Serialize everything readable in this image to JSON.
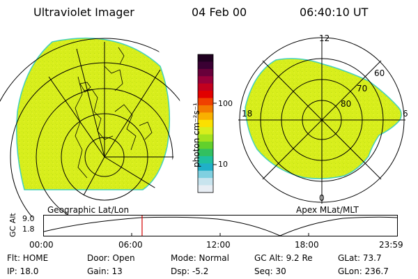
{
  "header": {
    "instrument": "Ultraviolet Imager",
    "date": "04 Feb 00",
    "time": "06:40:10 UT"
  },
  "colors": {
    "emission": "#d8ee1c",
    "emission_edge": "#42d0bd",
    "grid": "#000000",
    "time_marker": "#d40000"
  },
  "colorbar": {
    "unit_label": "photon cm⁻²s⁻¹",
    "ticks": [
      "100",
      "10"
    ],
    "colors": [
      "#200020",
      "#3a0033",
      "#68003a",
      "#98003a",
      "#c2001e",
      "#e10000",
      "#f04000",
      "#f37a00",
      "#f9b000",
      "#fbe000",
      "#d8ee1c",
      "#a4e21e",
      "#62d02c",
      "#32c060",
      "#1fc0a0",
      "#20b0c8",
      "#80d0e0",
      "#c8e4ee",
      "#e8eef4"
    ]
  },
  "left_panel": {
    "caption": "Geographic Lat/Lon"
  },
  "right_panel": {
    "caption": "Apex MLat/MLT",
    "mlt_labels": {
      "top": "12",
      "left": "18",
      "right": "6",
      "bottom": "0"
    },
    "lat_labels": [
      "60",
      "70",
      "80"
    ]
  },
  "altitude_plot": {
    "axis_title": "GC Alt",
    "y_ticks": [
      "9.0",
      "1.8"
    ],
    "x_ticks": [
      "00:00",
      "06:00",
      "12:00",
      "18:00",
      "23:59"
    ],
    "current_time_fraction": 0.278
  },
  "status": {
    "flt": "Flt: HOME",
    "door": "Door: Open",
    "mode": "Mode: Normal",
    "gc_alt": "GC Alt: 9.2 Re",
    "glat": "GLat:  73.7",
    "ip": "IP: 18.0",
    "gain": "Gain: 13",
    "dsp": "Dsp:    -5.2",
    "seq": "Seq: 30",
    "glon": "GLon: 236.7"
  }
}
